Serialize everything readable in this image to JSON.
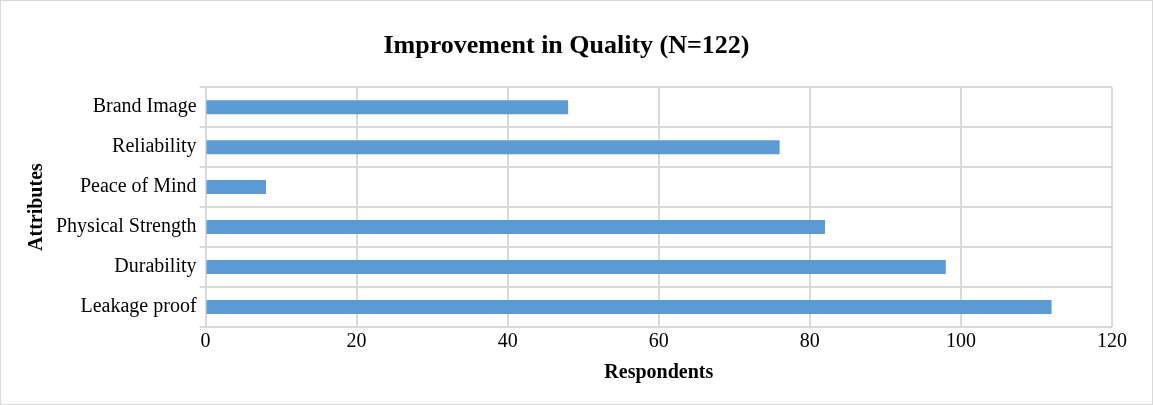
{
  "chart_data": {
    "type": "bar",
    "orientation": "horizontal",
    "title": "Improvement in Quality (N=122)",
    "xlabel": "Respondents",
    "ylabel": "Attributes",
    "categories": [
      "Brand Image",
      "Reliability",
      "Peace of Mind",
      "Physical Strength",
      "Durability",
      "Leakage proof"
    ],
    "values": [
      48,
      76,
      8,
      82,
      98,
      112
    ],
    "color": "#5b9bd5",
    "xlim": [
      0,
      120
    ],
    "xticks": [
      0,
      20,
      40,
      60,
      80,
      100,
      120
    ],
    "grid": true,
    "legend": false
  }
}
